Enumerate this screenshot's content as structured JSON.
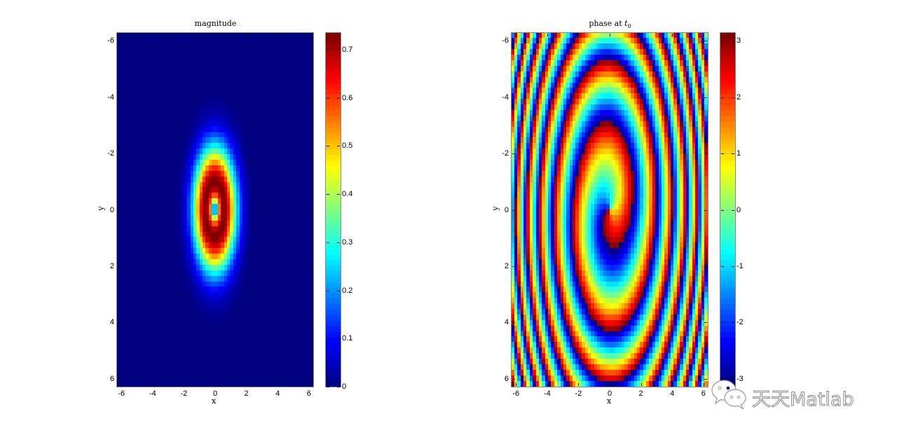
{
  "chart_data": [
    {
      "type": "heatmap",
      "title": "magnitude",
      "xlabel": "x",
      "ylabel": "y",
      "xlim": [
        -6.28,
        6.28
      ],
      "ylim": [
        -6.28,
        6.28
      ],
      "y_direction": "reverse",
      "x_ticks": [
        -6,
        -4,
        -2,
        0,
        2,
        4,
        6
      ],
      "y_ticks": [
        -6,
        -4,
        -2,
        0,
        2,
        4,
        6
      ],
      "colormap": "jet",
      "grid_resolution": 64,
      "description": "Vortex ring: zero at origin, ring maximum ~0.73 at elliptical radius ~1 (narrower in x than y), decays to 0 beyond radius ~3",
      "field": {
        "kind": "magnitude",
        "sx": 0.62,
        "sy": 1.0,
        "peak": 0.73
      },
      "colorbar": {
        "min": 0,
        "max": 0.735,
        "ticks": [
          0,
          0.1,
          0.2,
          0.3,
          0.4,
          0.5,
          0.6,
          0.7
        ]
      },
      "grid": false
    },
    {
      "type": "heatmap",
      "title": "phase at t",
      "title_subscript": "0",
      "xlabel": "x",
      "ylabel": "y",
      "xlim": [
        -6.28,
        6.28
      ],
      "ylim": [
        -6.28,
        6.28
      ],
      "y_direction": "reverse",
      "x_ticks": [
        -6,
        -4,
        -2,
        0,
        2,
        4,
        6
      ],
      "y_ticks": [
        -6,
        -4,
        -2,
        0,
        2,
        4,
        6
      ],
      "colormap": "jet",
      "grid_resolution": 64,
      "description": "Spiral phase pattern wrapped to [-pi, pi]; branch cut from origin upward; phase increases with radius (spiral arms)",
      "field": {
        "kind": "phase",
        "sx": 0.62,
        "sy": 1.0,
        "k": 0.55,
        "offset": -1.2
      },
      "colorbar": {
        "min": -3.1416,
        "max": 3.1416,
        "ticks": [
          -3,
          -2,
          -1,
          0,
          1,
          2,
          3
        ]
      },
      "grid": false
    }
  ],
  "plots": {
    "left": {
      "title": "magnitude",
      "xlabel": "x",
      "ylabel": "y",
      "x_tick_labels": [
        "-6",
        "-4",
        "-2",
        "0",
        "2",
        "4",
        "6"
      ],
      "y_tick_labels": [
        "-6",
        "-4",
        "-2",
        "0",
        "2",
        "4",
        "6"
      ],
      "cb_tick_labels": [
        "0",
        "0.1",
        "0.2",
        "0.3",
        "0.4",
        "0.5",
        "0.6",
        "0.7"
      ]
    },
    "right": {
      "title_main": "phase at ",
      "title_var": "t",
      "title_sub": "0",
      "xlabel": "x",
      "ylabel": "y",
      "x_tick_labels": [
        "-6",
        "-4",
        "-2",
        "0",
        "2",
        "4",
        "6"
      ],
      "y_tick_labels": [
        "-6",
        "-4",
        "-2",
        "0",
        "2",
        "4",
        "6"
      ],
      "cb_tick_labels": [
        "-3",
        "-2",
        "-1",
        "0",
        "1",
        "2",
        "3"
      ]
    }
  },
  "watermark": {
    "text": "天天Matlab",
    "icon": "wechat-icon"
  }
}
